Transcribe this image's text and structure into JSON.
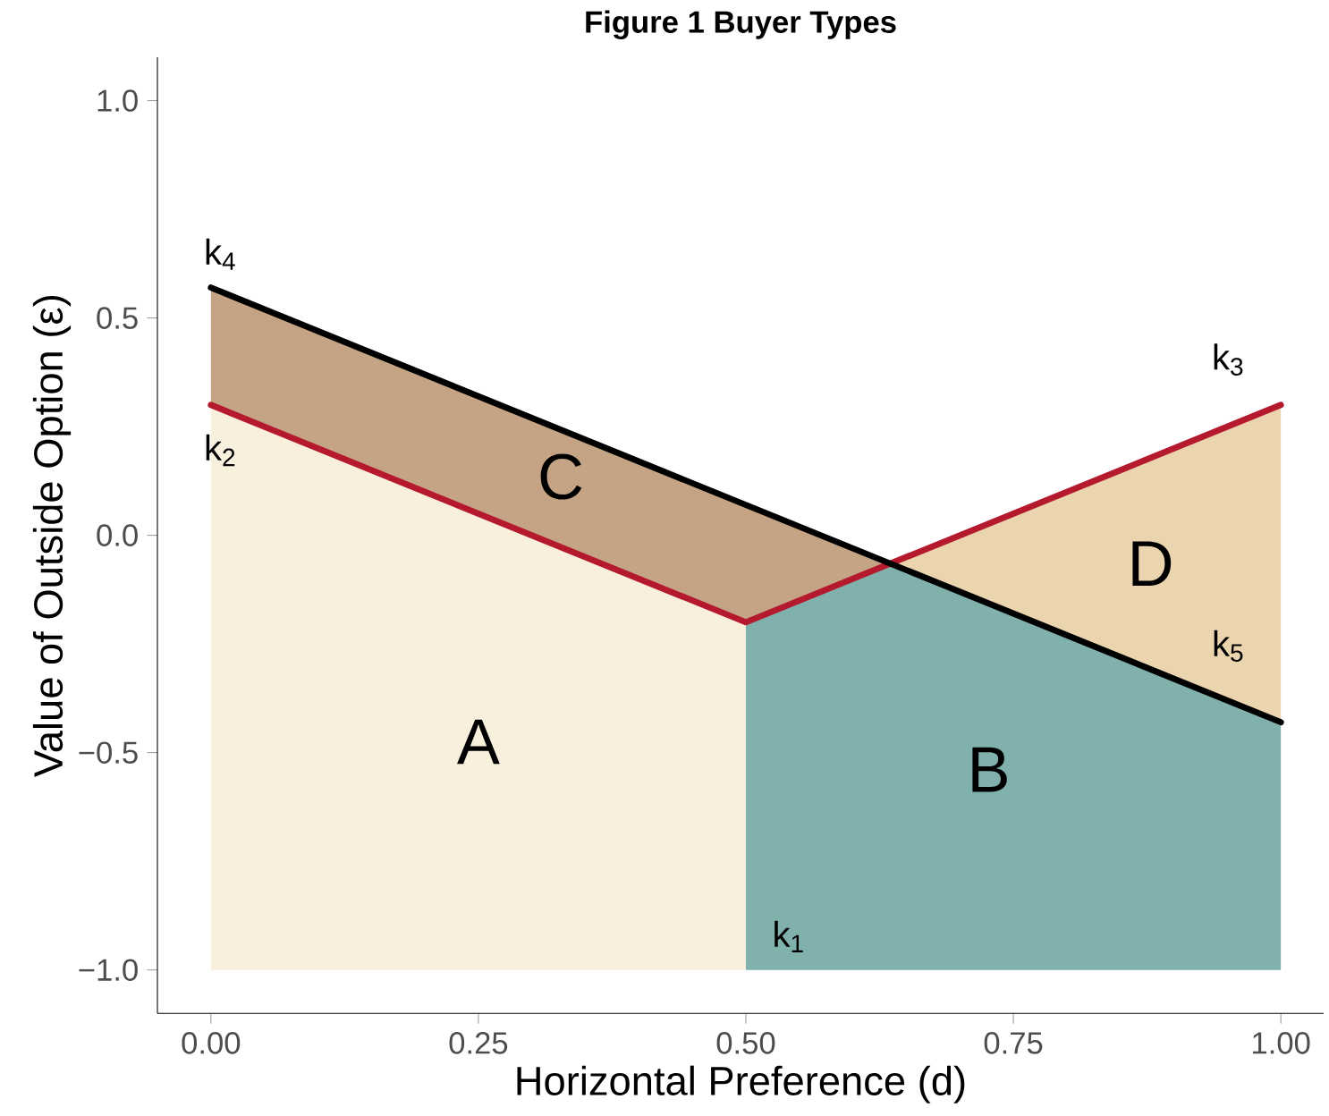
{
  "chart_data": {
    "type": "area",
    "title": "Figure 1     Buyer Types",
    "xlabel": "Horizontal Preference (d)",
    "ylabel": "Value of Outside Option (ε)",
    "xlim": [
      -0.05,
      1.04
    ],
    "ylim": [
      -1.1,
      1.1
    ],
    "xticks": [
      {
        "value": 0,
        "label": "0.00"
      },
      {
        "value": 0.25,
        "label": "0.25"
      },
      {
        "value": 0.5,
        "label": "0.50"
      },
      {
        "value": 0.75,
        "label": "0.75"
      },
      {
        "value": 1,
        "label": "1.00"
      }
    ],
    "yticks": [
      {
        "value": -1,
        "label": "−1.0"
      },
      {
        "value": -0.5,
        "label": "−0.5"
      },
      {
        "value": 0,
        "label": "0.0"
      },
      {
        "value": 0.5,
        "label": "0.5"
      },
      {
        "value": 1,
        "label": "1.0"
      }
    ],
    "grid": false,
    "series": [
      {
        "name": "A",
        "color": "#f8f0dc",
        "x": [
          0,
          0.5,
          0.5,
          0
        ],
        "values": [
          0.3,
          -0.2,
          -1,
          -1
        ]
      },
      {
        "name": "B",
        "color": "#80b1ad",
        "x": [
          0.5,
          0.635,
          1,
          1,
          0.5
        ],
        "values": [
          -0.2,
          -0.065,
          -0.43,
          -1,
          -1
        ]
      },
      {
        "name": "C",
        "color": "#c4a484",
        "x": [
          0,
          0.5,
          0.635,
          0.5,
          0
        ],
        "values": [
          0.57,
          0.07,
          -0.065,
          -0.2,
          0.3
        ]
      },
      {
        "name": "D",
        "color": "#ebd5ae",
        "x": [
          0.635,
          1,
          1
        ],
        "values": [
          -0.065,
          0.3,
          -0.43
        ]
      },
      {
        "type": "line",
        "color": "#b5192e",
        "x": [
          0,
          0.5,
          1
        ],
        "values": [
          0.3,
          -0.2,
          0.3
        ]
      },
      {
        "type": "line",
        "color": "#000000",
        "x": [
          0,
          1
        ],
        "values": [
          0.57,
          -0.43
        ]
      }
    ],
    "annotations": [
      {
        "text": "k$_{4}$",
        "x": 0,
        "y": 0.57
      },
      {
        "text": "k$_{2}$",
        "x": 0,
        "y": 0.3
      },
      {
        "text": "k$_{3}$",
        "x": 1,
        "y": 0.3
      },
      {
        "text": "k$_{5}$",
        "x": 1,
        "y": -0.43
      },
      {
        "text": "k$_{1}$",
        "x": 0.5,
        "y": -1
      }
    ]
  }
}
